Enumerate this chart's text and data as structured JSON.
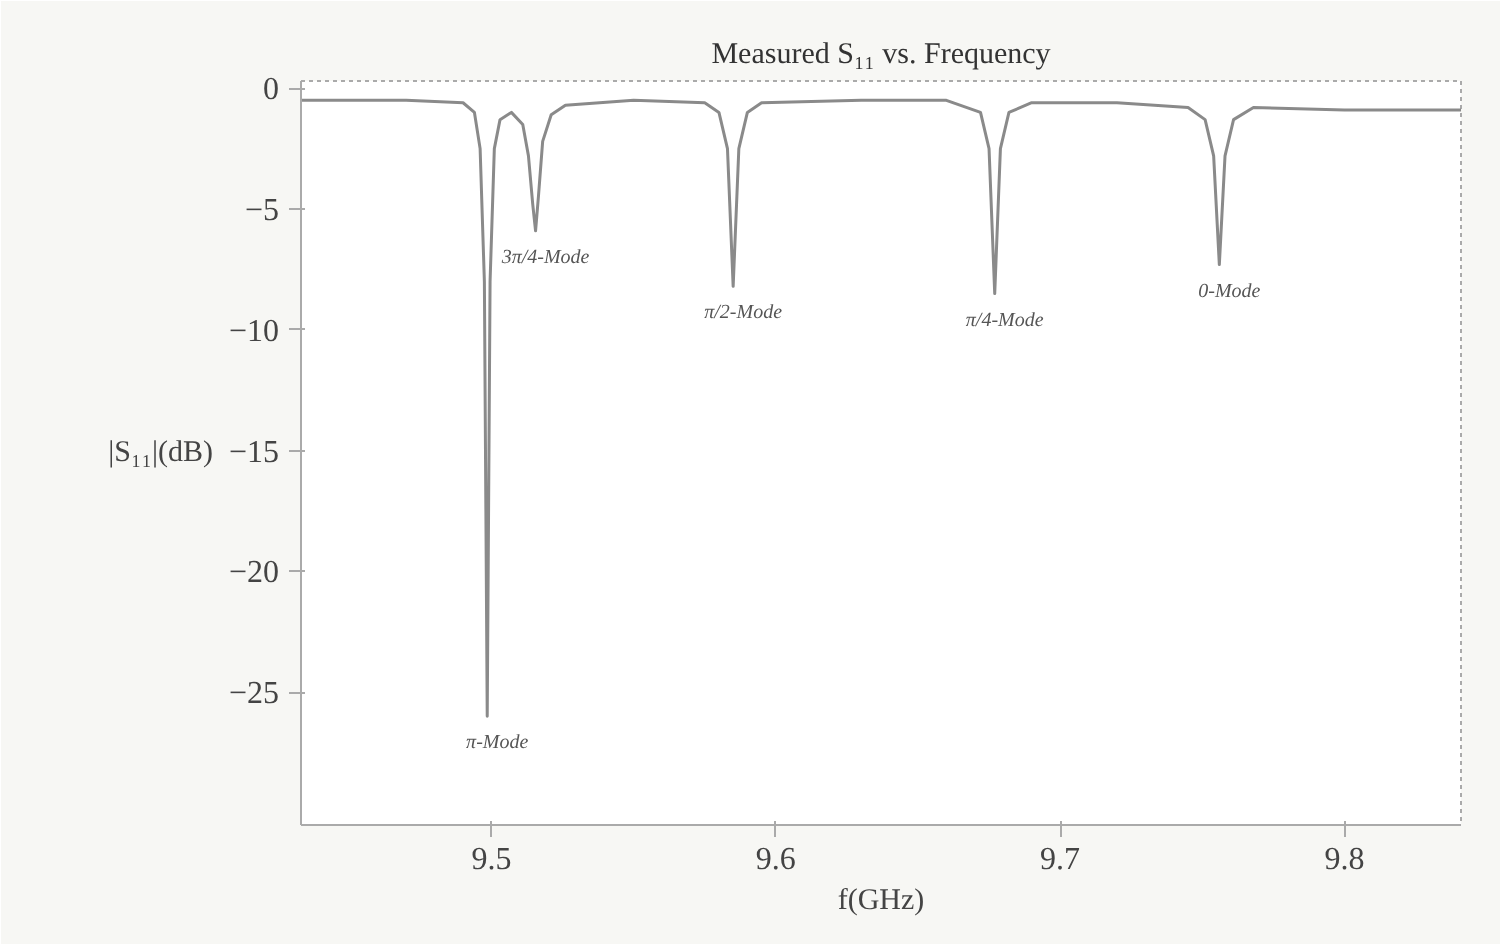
{
  "chart_data": {
    "type": "line",
    "title": "Measured S₁₁ vs. Frequency",
    "xlabel": "f(GHz)",
    "ylabel": "|S₁₁|(dB)",
    "xlim": [
      9.433,
      9.841
    ],
    "ylim": [
      -30.5,
      0.3
    ],
    "xticks": [
      9.5,
      9.6,
      9.7,
      9.8
    ],
    "yticks": [
      0,
      -5,
      -10,
      -15,
      -20,
      -25
    ],
    "grid": false,
    "series": [
      {
        "color": "#8a8a8a",
        "x": [
          9.433,
          9.47,
          9.49,
          9.494,
          9.496,
          9.4975,
          9.4985,
          9.4995,
          9.501,
          9.503,
          9.507,
          9.511,
          9.513,
          9.5145,
          9.5155,
          9.5165,
          9.518,
          9.521,
          9.526,
          9.55,
          9.575,
          9.58,
          9.583,
          9.585,
          9.587,
          9.59,
          9.595,
          9.63,
          9.66,
          9.672,
          9.675,
          9.677,
          9.679,
          9.682,
          9.69,
          9.72,
          9.745,
          9.751,
          9.754,
          9.756,
          9.758,
          9.761,
          9.768,
          9.8,
          9.841
        ],
        "values": [
          -0.5,
          -0.5,
          -0.6,
          -1.0,
          -2.5,
          -8,
          -26,
          -8,
          -2.5,
          -1.3,
          -1.0,
          -1.5,
          -2.8,
          -4.8,
          -5.9,
          -4.5,
          -2.2,
          -1.1,
          -0.7,
          -0.5,
          -0.6,
          -1.0,
          -2.5,
          -8.2,
          -2.5,
          -1.0,
          -0.6,
          -0.5,
          -0.5,
          -1.0,
          -2.5,
          -8.5,
          -2.5,
          -1.0,
          -0.6,
          -0.6,
          -0.8,
          -1.3,
          -2.8,
          -7.3,
          -2.8,
          -1.3,
          -0.8,
          -0.9,
          -0.9
        ]
      }
    ],
    "annotations": [
      {
        "text": "π-Mode",
        "x": 9.4985,
        "y": -26
      },
      {
        "text": "3π/4-Mode",
        "x": 9.5155,
        "y": -5.9
      },
      {
        "text": "π/2-Mode",
        "x": 9.585,
        "y": -8.2
      },
      {
        "text": "π/4-Mode",
        "x": 9.677,
        "y": -8.5
      },
      {
        "text": "0-Mode",
        "x": 9.756,
        "y": -7.3
      }
    ]
  }
}
